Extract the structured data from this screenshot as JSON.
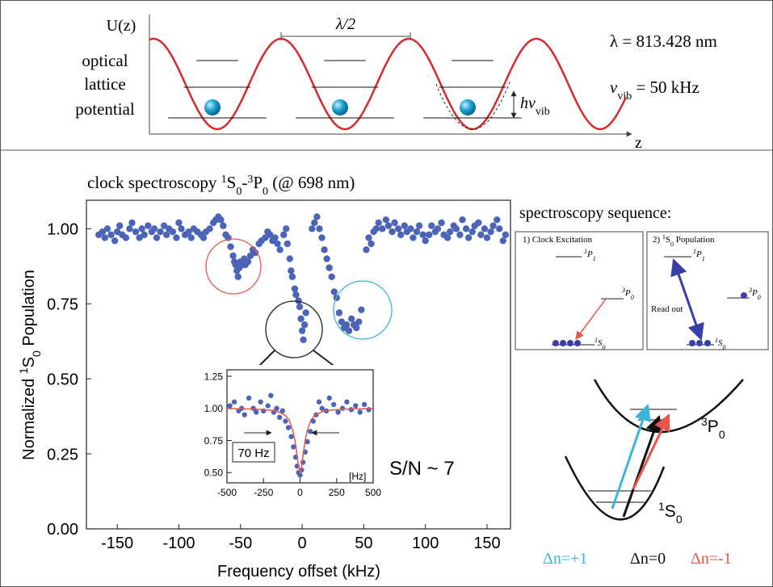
{
  "top_panel": {
    "y_label": "U(z)",
    "label_lines": [
      "optical",
      "lattice",
      "potential"
    ],
    "half_wavelength": "λ/2",
    "wavelength": "λ = 813.428 nm",
    "vib_freq": [
      "ν",
      "vib",
      " = 50 kHz"
    ],
    "quantum": [
      "hν",
      "vib"
    ],
    "z_label": "z"
  },
  "chart_data": [
    {
      "type": "scatter",
      "title": [
        "clock spectroscopy ",
        "1",
        "S",
        "0",
        "-",
        "3",
        "P",
        "0",
        " (@ 698 nm)"
      ],
      "x_label": "Frequency offset (kHz)",
      "y_label": [
        "Normalized ",
        "1",
        "S",
        "0",
        " Population"
      ],
      "annotation": "S/N ~ 7",
      "color": "#4b64b8",
      "xlim": [
        -175,
        169
      ],
      "ylim": [
        0,
        1.095
      ],
      "xticks": [
        -150,
        -100,
        -50,
        0,
        50,
        100,
        150
      ],
      "yticks": [
        {
          "value": 0,
          "label": "0.00"
        },
        {
          "value": 0.25,
          "label": "0.25"
        },
        {
          "value": 0.5,
          "label": "0.50"
        },
        {
          "value": 0.75,
          "label": "0.75"
        },
        {
          "value": 1,
          "label": "1.00"
        }
      ],
      "x": [
        -165,
        -162,
        -160,
        -158,
        -155,
        -152,
        -150,
        -148,
        -146,
        -143,
        -140,
        -138,
        -135,
        -132,
        -130,
        -128,
        -125,
        -122,
        -120,
        -118,
        -115,
        -112,
        -110,
        -108,
        -105,
        -102,
        -100,
        -98,
        -95,
        -92,
        -90,
        -88,
        -85,
        -82,
        -80,
        -78,
        -75,
        -72,
        -70,
        -68,
        -66,
        -64,
        -62,
        -60,
        -58,
        -56,
        -55,
        -54,
        -53,
        -52,
        -51,
        -50,
        -48,
        -47,
        -46,
        -44,
        -42,
        -40,
        -38,
        -35,
        -33,
        -30,
        -28,
        -26,
        -24,
        -22,
        -20,
        -18,
        -15,
        -13,
        -12,
        -10,
        -9,
        -8,
        -6,
        -5,
        -3,
        -2,
        -1,
        0,
        1,
        2,
        3,
        8,
        10,
        12,
        14,
        16,
        18,
        20,
        22,
        24,
        26,
        28,
        30,
        32,
        34,
        36,
        38,
        40,
        42,
        44,
        46,
        48,
        52,
        54,
        56,
        58,
        60,
        62,
        65,
        68,
        70,
        73,
        75,
        78,
        80,
        83,
        85,
        88,
        90,
        93,
        95,
        98,
        100,
        103,
        105,
        108,
        110,
        113,
        115,
        118,
        120,
        123,
        125,
        128,
        130,
        133,
        135,
        138,
        140,
        143,
        145,
        148,
        150,
        153,
        155,
        158,
        160,
        163,
        165
      ],
      "values": [
        0.98,
        0.99,
        0.97,
        1.0,
        0.98,
        0.96,
        0.99,
        1.01,
        0.98,
        0.97,
        1.0,
        1.02,
        0.99,
        0.97,
        1.0,
        0.98,
        1.01,
        0.99,
        1.0,
        0.97,
        0.99,
        1.01,
        0.98,
        1.0,
        0.99,
        0.97,
        1.02,
        1.0,
        0.98,
        0.99,
        0.97,
        1.0,
        0.99,
        0.98,
        0.97,
        0.99,
        1.0,
        1.02,
        1.03,
        1.04,
        1.03,
        1.01,
        0.98,
        0.97,
        0.94,
        0.91,
        0.89,
        0.88,
        0.86,
        0.84,
        0.87,
        0.89,
        0.88,
        0.9,
        0.88,
        0.89,
        0.91,
        0.93,
        0.92,
        0.95,
        0.96,
        0.97,
        0.99,
        0.98,
        0.96,
        0.97,
        0.95,
        0.93,
        0.98,
        1.0,
        0.95,
        0.9,
        0.86,
        0.84,
        0.8,
        0.78,
        0.76,
        0.74,
        0.7,
        0.66,
        0.63,
        0.68,
        0.72,
        1.0,
        1.02,
        1.04,
        1.0,
        0.97,
        0.93,
        0.9,
        0.87,
        0.84,
        0.79,
        0.77,
        0.72,
        0.69,
        0.67,
        0.68,
        0.66,
        0.7,
        0.68,
        0.67,
        0.69,
        0.73,
        0.93,
        0.97,
        0.95,
        0.99,
        1.0,
        1.02,
        1.0,
        1.03,
        1.01,
        0.99,
        1.02,
        1.0,
        0.98,
        1.01,
        0.99,
        1.0,
        0.97,
        0.99,
        1.01,
        0.98,
        0.96,
        0.98,
        1.01,
        0.99,
        1.0,
        1.02,
        0.98,
        0.97,
        0.99,
        1.01,
        1.0,
        0.98,
        1.03,
        1.0,
        0.97,
        0.99,
        1.01,
        1.02,
        0.98,
        1.0,
        0.97,
        0.99,
        1.01,
        1.03,
        1.0,
        0.96,
        0.98
      ]
    },
    {
      "type": "scatter",
      "color": "#4b64b8",
      "annotations": [
        "70 Hz",
        "[Hz]"
      ],
      "xlim": [
        -500,
        500
      ],
      "ylim": [
        0.42,
        1.3
      ],
      "xticks": [
        -500,
        -250,
        0,
        250,
        500
      ],
      "yticks": [
        {
          "value": 0.5,
          "label": "0.50"
        },
        {
          "value": 0.75,
          "label": "0.75"
        },
        {
          "value": 1,
          "label": "1.00"
        },
        {
          "value": 1.25,
          "label": "1.25"
        }
      ],
      "x": [
        -480,
        -450,
        -420,
        -400,
        -380,
        -350,
        -320,
        -300,
        -270,
        -250,
        -220,
        -200,
        -180,
        -160,
        -140,
        -120,
        -100,
        -80,
        -60,
        -45,
        -30,
        -20,
        -10,
        0,
        10,
        20,
        35,
        50,
        70,
        90,
        110,
        130,
        150,
        180,
        200,
        230,
        260,
        290,
        320,
        350,
        380,
        410,
        440,
        470
      ],
      "values": [
        1.02,
        1.05,
        0.98,
        1.0,
        0.95,
        1.08,
        1.0,
        0.97,
        1.05,
        0.98,
        1.02,
        1.1,
        0.97,
        1.0,
        0.93,
        0.98,
        0.9,
        0.85,
        0.78,
        0.7,
        0.62,
        0.55,
        0.5,
        0.48,
        0.52,
        0.58,
        0.66,
        0.74,
        0.82,
        0.9,
        0.95,
        1.05,
        1.0,
        0.98,
        1.08,
        1.03,
        0.97,
        1.0,
        1.05,
        0.99,
        1.02,
        0.97,
        1.03,
        0.99
      ],
      "fit": {
        "color": "#e8554a",
        "x": [
          -500,
          -400,
          -300,
          -200,
          -150,
          -100,
          -75,
          -50,
          -35,
          -20,
          -10,
          0,
          10,
          20,
          35,
          50,
          75,
          100,
          150,
          200,
          300,
          400,
          500
        ],
        "values": [
          0.998,
          0.996,
          0.993,
          0.985,
          0.974,
          0.945,
          0.91,
          0.83,
          0.75,
          0.63,
          0.54,
          0.5,
          0.54,
          0.63,
          0.75,
          0.83,
          0.91,
          0.945,
          0.974,
          0.985,
          0.993,
          0.996,
          0.998
        ]
      }
    }
  ],
  "sequence": {
    "heading": "spectroscopy sequence:",
    "step1": {
      "title": "1) Clock Excitation",
      "upper": [
        "1",
        "P",
        "1"
      ],
      "middle": [
        "3",
        "P",
        "0"
      ],
      "ground": [
        "1",
        "S",
        "0"
      ]
    },
    "step2": {
      "title": [
        "2) ",
        "1",
        "S",
        "0",
        " Population"
      ],
      "upper": [
        "1",
        "P",
        "1"
      ],
      "middle": [
        "3",
        "P",
        "0"
      ],
      "ground": [
        "1",
        "S",
        "0"
      ],
      "arrow_label": "Read out"
    }
  },
  "sideband": {
    "upper": [
      "3",
      "P",
      "0"
    ],
    "lower": [
      "1",
      "S",
      "0"
    ],
    "labels": [
      "Δn=+1",
      "Δn=0",
      "Δn=-1"
    ]
  }
}
